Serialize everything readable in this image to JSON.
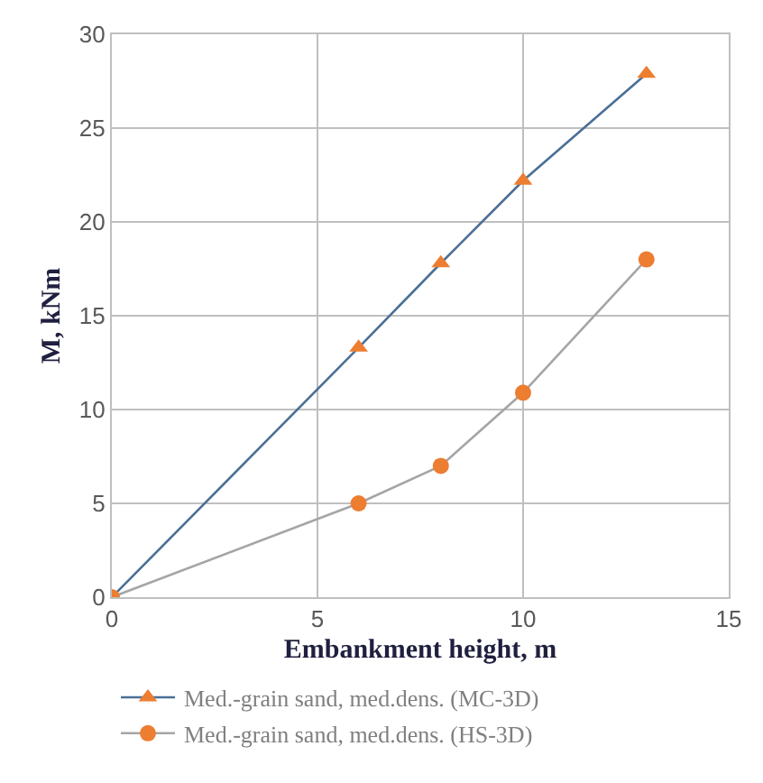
{
  "chart_data": {
    "type": "line",
    "xlabel": "Embankment height, m",
    "ylabel": "M, kNm",
    "x": [
      0,
      6,
      8,
      10,
      13
    ],
    "series": [
      {
        "name": "Med.-grain sand, med.dens. (MC-3D)",
        "color": "#4a6f95",
        "colors": [
          "#ed7d31",
          "#ed7d31",
          "#ed7d31",
          "#ed7d31",
          "#ed7d31"
        ],
        "marker": "triangle",
        "values": [
          0,
          13.3,
          17.8,
          22.2,
          27.9
        ]
      },
      {
        "name": "Med.-grain sand, med.dens. (HS-3D)",
        "color": "#a5a5a5",
        "colors": [
          "#ed7d31",
          "#ed7d31",
          "#ed7d31",
          "#ed7d31",
          "#ed7d31"
        ],
        "marker": "circle",
        "values": [
          0,
          5.0,
          7.0,
          10.9,
          18.0
        ]
      }
    ],
    "xlim": [
      0,
      15
    ],
    "xticks": [
      0,
      5,
      10,
      15
    ],
    "ylim": [
      0,
      30
    ],
    "yticks": [
      0,
      5,
      10,
      15,
      20,
      25,
      30
    ],
    "grid": true,
    "legend": "bottom"
  }
}
